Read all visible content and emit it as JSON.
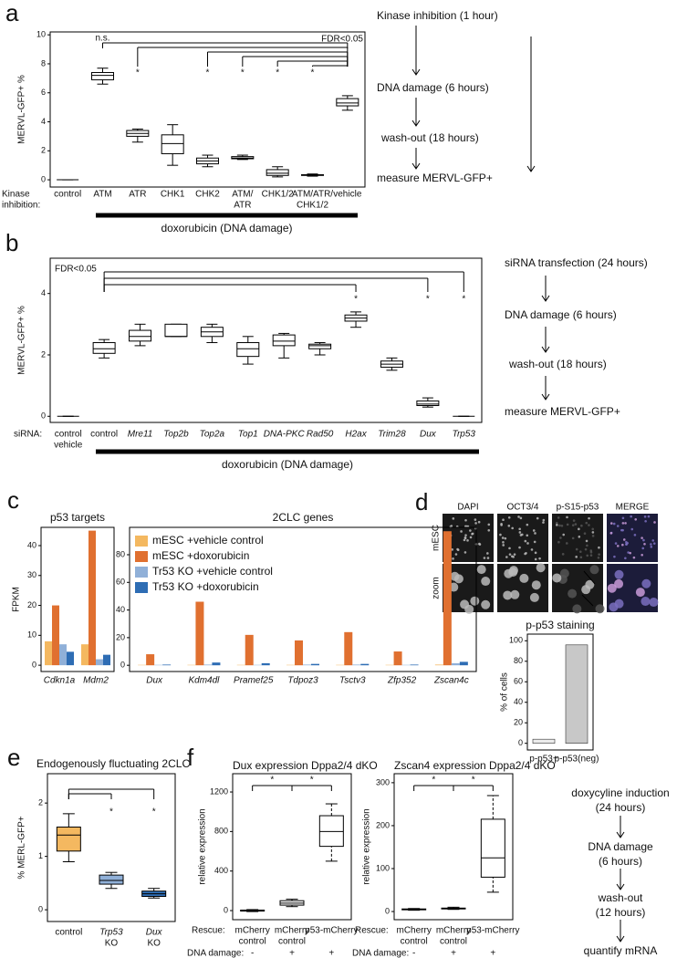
{
  "panel_labels": [
    "a",
    "b",
    "c",
    "d",
    "e",
    "f"
  ],
  "protocols": {
    "a": [
      "Kinase inhibition (1 hour)",
      "DNA damage (6 hours)",
      "wash-out (18 hours)",
      "measure MERVL-GFP+"
    ],
    "b": [
      "siRNA transfection (24 hours)",
      "DNA damage (6 hours)",
      "wash-out (18 hours)",
      "measure MERVL-GFP+"
    ],
    "f": [
      "doxycyline induction",
      "(24 hours)",
      "DNA damage",
      "(6 hours)",
      "wash-out",
      "(12 hours)",
      "quantify mRNA"
    ]
  },
  "micrographs": {
    "columns": [
      "DAPI",
      "OCT3/4",
      "p-S15-p53",
      "MERGE"
    ],
    "rows": [
      "mESC",
      "zoom"
    ]
  },
  "chart_data": [
    {
      "type": "box",
      "y_label": "MERVL-GFP+ %",
      "row_label": [
        "Kinase",
        "inhibition:"
      ],
      "categories": [
        [
          "control"
        ],
        [
          "ATM"
        ],
        [
          "ATR"
        ],
        [
          "CHK1"
        ],
        [
          "CHK2"
        ],
        [
          "ATM/",
          "ATR"
        ],
        [
          "CHK1/2"
        ],
        [
          "ATM/ATR/",
          "CHK1/2"
        ],
        [
          "vehicle"
        ]
      ],
      "values": [
        [
          0,
          0,
          0,
          0,
          0
        ],
        [
          6.6,
          6.9,
          7.2,
          7.4,
          7.7
        ],
        [
          2.6,
          3.0,
          3.2,
          3.4,
          3.5
        ],
        [
          1.0,
          1.8,
          2.5,
          3.1,
          3.8
        ],
        [
          0.9,
          1.1,
          1.3,
          1.5,
          1.7
        ],
        [
          1.4,
          1.45,
          1.5,
          1.6,
          1.7
        ],
        [
          0.2,
          0.3,
          0.45,
          0.7,
          0.9
        ],
        [
          0.25,
          0.3,
          0.35,
          0.35,
          0.4
        ],
        [
          4.8,
          5.1,
          5.3,
          5.6,
          5.8
        ]
      ],
      "color": "#ffffff",
      "ylim": [
        -0.5,
        10.2
      ],
      "yticks": [
        0,
        2,
        4,
        6,
        8,
        10
      ],
      "treatment": "doxorubicin (DNA damage)",
      "annotations": [
        "n.s.",
        "*",
        "*",
        "*",
        "*",
        "*",
        "FDR<0.05"
      ]
    },
    {
      "type": "box",
      "y_label": "MERVL-GFP+ %",
      "row_label": [
        "siRNA:"
      ],
      "categories": [
        [
          "control",
          "vehicle"
        ],
        [
          "control"
        ],
        [
          "Mre11"
        ],
        [
          "Top2b"
        ],
        [
          "Top2a"
        ],
        [
          "Top1"
        ],
        [
          "DNA-PKC"
        ],
        [
          "Rad50"
        ],
        [
          "H2ax"
        ],
        [
          "Trim28"
        ],
        [
          "Dux"
        ],
        [
          "Trp53"
        ]
      ],
      "values": [
        [
          0,
          0,
          0,
          0,
          0
        ],
        [
          1.9,
          2.05,
          2.2,
          2.4,
          2.5
        ],
        [
          2.3,
          2.45,
          2.6,
          2.8,
          3.0
        ],
        [
          2.6,
          2.6,
          2.6,
          3.0,
          3.0
        ],
        [
          2.4,
          2.6,
          2.75,
          2.9,
          3.0
        ],
        [
          1.7,
          1.95,
          2.2,
          2.4,
          2.6
        ],
        [
          1.9,
          2.3,
          2.45,
          2.65,
          2.7
        ],
        [
          2.0,
          2.2,
          2.3,
          2.35,
          2.4
        ],
        [
          2.9,
          3.1,
          3.2,
          3.3,
          3.4
        ],
        [
          1.5,
          1.6,
          1.7,
          1.8,
          1.9
        ],
        [
          0.3,
          0.35,
          0.4,
          0.5,
          0.6
        ],
        [
          0,
          0,
          0,
          0,
          0
        ]
      ],
      "color": "#ffffff",
      "ylim": [
        -0.2,
        5.15
      ],
      "yticks": [
        0,
        2,
        4
      ],
      "treatment": "doxorubicin (DNA damage)",
      "annotations": [
        "FDR<0.05",
        "*",
        "*",
        "*"
      ]
    },
    {
      "type": "bar",
      "title": "p53 targets",
      "y_label": "FPKM",
      "categories": [
        "Cdkn1a",
        "Mdm2"
      ],
      "series": [
        {
          "color": "#f4b860",
          "values": [
            8,
            7
          ]
        },
        {
          "color": "#e07030",
          "values": [
            20,
            45
          ]
        },
        {
          "color": "#90b0d8",
          "values": [
            7,
            2
          ]
        },
        {
          "color": "#2e6db4",
          "values": [
            4.5,
            3.5
          ]
        }
      ],
      "ylim": [
        -2.1,
        46.1
      ],
      "yticks": [
        0,
        10,
        20,
        30,
        40
      ]
    },
    {
      "type": "bar",
      "title": "2CLC genes",
      "categories": [
        "Dux",
        "Kdm4dl",
        "Pramef25",
        "Tdpoz3",
        "Tsctv3",
        "Zfp352",
        "Zscan4c"
      ],
      "series": [
        {
          "name": "mESC +vehicle control",
          "color": "#f4b860",
          "values": [
            0.3,
            0.3,
            0.3,
            0.3,
            0.3,
            0.3,
            0.5
          ]
        },
        {
          "name": "mESC +doxorubicin",
          "color": "#e07030",
          "values": [
            8,
            46,
            22,
            18,
            24,
            10,
            97
          ]
        },
        {
          "name": "Tr53 KO +vehicle control",
          "color": "#90b0d8",
          "values": [
            0.3,
            0.5,
            0.3,
            0.5,
            0.5,
            0.3,
            1.5
          ]
        },
        {
          "name": "Tr53 KO +doxorubicin",
          "color": "#2e6db4",
          "values": [
            0.5,
            2,
            1.5,
            1,
            1,
            0.5,
            2.5
          ]
        }
      ],
      "ylim": [
        -4.5,
        99.8
      ],
      "yticks": [
        0,
        20,
        40,
        60,
        80
      ]
    },
    {
      "type": "bar",
      "title": "p-p53 staining",
      "y_label": "% of cells",
      "categories": [
        "p-p53+",
        "p-p53(neg)"
      ],
      "values": [
        4,
        96
      ],
      "colors": [
        "#ececec",
        "#c8c8c8"
      ],
      "ylim": [
        -6.5,
        106.5
      ],
      "yticks": [
        0,
        20,
        40,
        60,
        80,
        100
      ]
    },
    {
      "type": "box",
      "title": "Endogenously fluctuating 2CLC",
      "y_label": "% MERL-GFP+",
      "categories": [
        [
          "control"
        ],
        [
          "Trp53",
          "KO"
        ],
        [
          "Dux",
          "KO"
        ]
      ],
      "values": [
        [
          0.9,
          1.1,
          1.4,
          1.55,
          1.8
        ],
        [
          0.4,
          0.48,
          0.55,
          0.65,
          0.7
        ],
        [
          0.22,
          0.25,
          0.3,
          0.35,
          0.4
        ]
      ],
      "colors": [
        "#f4b860",
        "#90b0d8",
        "#2e6db4"
      ],
      "ylim": [
        -0.22,
        2.55
      ],
      "yticks": [
        0,
        1,
        2
      ],
      "annotations": [
        "*",
        "*"
      ]
    },
    {
      "type": "box",
      "title": "Dux expression Dppa2/4 dKO",
      "y_label": "relative expression",
      "row_label": [
        "Rescue:"
      ],
      "categories": [
        [
          "mCherry",
          "control"
        ],
        [
          "mCherry",
          "control"
        ],
        [
          "p53-mCherry"
        ]
      ],
      "row2_label": "DNA damage:",
      "row2": [
        "-",
        "+",
        "+"
      ],
      "values": [
        [
          -10,
          -5,
          0,
          5,
          10
        ],
        [
          40,
          55,
          75,
          100,
          115
        ],
        [
          500,
          650,
          800,
          960,
          1080
        ]
      ],
      "color": "#ffffff",
      "ylim": [
        -92,
        1385
      ],
      "yticks": [
        0,
        400,
        800,
        1200
      ],
      "annotations": [
        "*",
        "*"
      ]
    },
    {
      "type": "box",
      "title": "Zscan4 expression Dppa2/4 dKO",
      "y_label": "relative expression",
      "row_label": [
        "Rescue:"
      ],
      "categories": [
        [
          "mCherry",
          "control"
        ],
        [
          "mCherry",
          "control"
        ],
        [
          "p53-mCherry"
        ]
      ],
      "row2_label": "DNA damage:",
      "row2": [
        "-",
        "+",
        "+"
      ],
      "values": [
        [
          3,
          4,
          5,
          6,
          7
        ],
        [
          5,
          6,
          7,
          8,
          10
        ],
        [
          45,
          80,
          125,
          215,
          270
        ]
      ],
      "color": "#ffffff",
      "ylim": [
        -19,
        321
      ],
      "yticks": [
        0,
        100,
        200,
        300
      ],
      "annotations": [
        "*",
        "*"
      ]
    }
  ]
}
